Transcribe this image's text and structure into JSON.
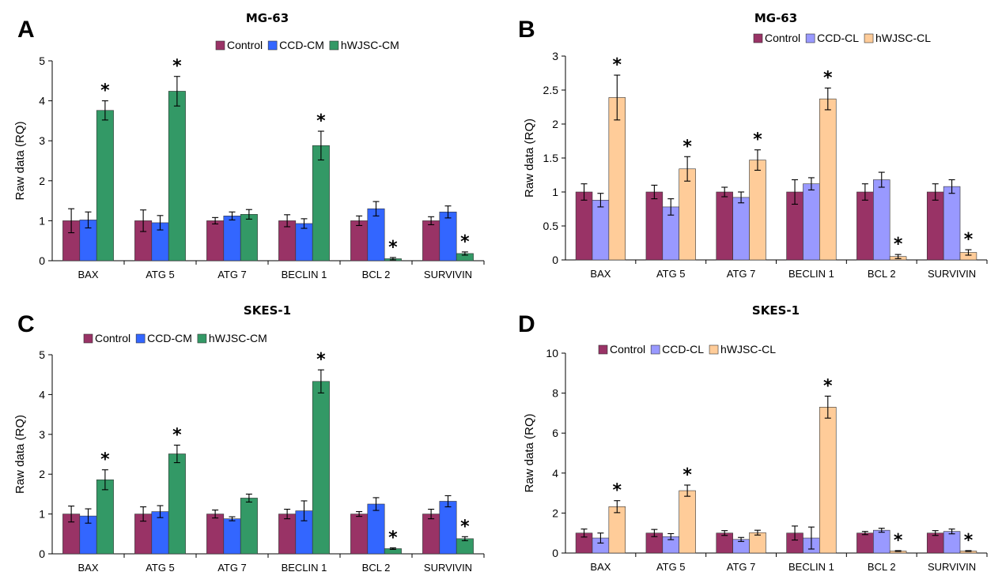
{
  "chart_data": [
    {
      "panel": "A",
      "type": "bar",
      "title": "MG-63",
      "ylabel": "Raw data (RQ)",
      "xlabel": "",
      "ylim": [
        0,
        5
      ],
      "yticks": [
        "0",
        "1",
        "2",
        "3",
        "4",
        "5"
      ],
      "categories": [
        "BAX",
        "ATG 5",
        "ATG 7",
        "BECLIN 1",
        "BCL 2",
        "SURVIVIN"
      ],
      "legend_position": "top",
      "series": [
        {
          "name": "Control",
          "color": "#993366",
          "values": [
            1.0,
            1.0,
            1.0,
            1.0,
            1.0,
            1.0
          ],
          "errors": [
            0.3,
            0.27,
            0.08,
            0.15,
            0.12,
            0.1
          ]
        },
        {
          "name": "CCD-CM",
          "color": "#3366ff",
          "values": [
            1.02,
            0.95,
            1.12,
            0.93,
            1.3,
            1.22
          ],
          "errors": [
            0.2,
            0.18,
            0.1,
            0.12,
            0.18,
            0.15
          ]
        },
        {
          "name": "hWJSC-CM",
          "color": "#339966",
          "values": [
            3.76,
            4.24,
            1.16,
            2.88,
            0.05,
            0.18
          ],
          "errors": [
            0.24,
            0.37,
            0.12,
            0.36,
            0.03,
            0.04
          ]
        }
      ],
      "significance": [
        "*",
        "*",
        "",
        "*",
        "*",
        "*"
      ]
    },
    {
      "panel": "B",
      "type": "bar",
      "title": "MG-63",
      "ylabel": "Raw data (RQ)",
      "xlabel": "",
      "ylim": [
        0,
        3
      ],
      "yticks": [
        "0",
        "0.5",
        "1",
        "1.5",
        "2",
        "2.5",
        "3"
      ],
      "categories": [
        "BAX",
        "ATG 5",
        "ATG 7",
        "BECLIN 1",
        "BCL 2",
        "SURVIVIN"
      ],
      "legend_position": "top-right",
      "series": [
        {
          "name": "Control",
          "color": "#993366",
          "values": [
            1.0,
            1.0,
            1.0,
            1.0,
            1.0,
            1.0
          ],
          "errors": [
            0.12,
            0.1,
            0.07,
            0.18,
            0.12,
            0.12
          ]
        },
        {
          "name": "CCD-CL",
          "color": "#9999ff",
          "values": [
            0.88,
            0.78,
            0.92,
            1.12,
            1.18,
            1.08
          ],
          "errors": [
            0.1,
            0.12,
            0.08,
            0.09,
            0.11,
            0.1
          ]
        },
        {
          "name": "hWJSC-CL",
          "color": "#ffcc99",
          "values": [
            2.39,
            1.34,
            1.47,
            2.37,
            0.05,
            0.11
          ],
          "errors": [
            0.33,
            0.18,
            0.15,
            0.16,
            0.03,
            0.04
          ]
        }
      ],
      "significance": [
        "*",
        "*",
        "*",
        "*",
        "*",
        "*"
      ]
    },
    {
      "panel": "C",
      "type": "bar",
      "title": "SKES-1",
      "ylabel": "Raw data (RQ)",
      "xlabel": "",
      "ylim": [
        0,
        5
      ],
      "yticks": [
        "0",
        "1",
        "2",
        "3",
        "4",
        "5"
      ],
      "categories": [
        "BAX",
        "ATG 5",
        "ATG 7",
        "BECLIN 1",
        "BCL 2",
        "SURVIVIN"
      ],
      "legend_position": "top-left",
      "series": [
        {
          "name": "Control",
          "color": "#993366",
          "values": [
            1.0,
            1.0,
            1.0,
            1.0,
            1.0,
            1.0
          ],
          "errors": [
            0.2,
            0.18,
            0.1,
            0.12,
            0.06,
            0.12
          ]
        },
        {
          "name": "CCD-CM",
          "color": "#3366ff",
          "values": [
            0.95,
            1.06,
            0.88,
            1.08,
            1.25,
            1.32
          ],
          "errors": [
            0.18,
            0.15,
            0.05,
            0.25,
            0.16,
            0.14
          ]
        },
        {
          "name": "hWJSC-CM",
          "color": "#339966",
          "values": [
            1.86,
            2.51,
            1.4,
            4.33,
            0.13,
            0.38
          ],
          "errors": [
            0.25,
            0.22,
            0.1,
            0.29,
            0.02,
            0.05
          ]
        }
      ],
      "significance": [
        "*",
        "*",
        "",
        "*",
        "*",
        "*"
      ]
    },
    {
      "panel": "D",
      "type": "bar",
      "title": "SKES-1",
      "ylabel": "Raw data (RQ)",
      "xlabel": "",
      "ylim": [
        0,
        10
      ],
      "yticks": [
        "0",
        "2",
        "4",
        "6",
        "8",
        "10"
      ],
      "categories": [
        "BAX",
        "ATG 5",
        "ATG 7",
        "BECLIN 1",
        "BCL 2",
        "SURVIVIN"
      ],
      "legend_position": "top-left",
      "series": [
        {
          "name": "Control",
          "color": "#993366",
          "values": [
            1.0,
            1.0,
            1.0,
            1.0,
            1.0,
            1.0
          ],
          "errors": [
            0.2,
            0.18,
            0.12,
            0.35,
            0.08,
            0.12
          ]
        },
        {
          "name": "CCD-CL",
          "color": "#9999ff",
          "values": [
            0.75,
            0.82,
            0.68,
            0.75,
            1.14,
            1.08
          ],
          "errors": [
            0.25,
            0.15,
            0.1,
            0.55,
            0.1,
            0.12
          ]
        },
        {
          "name": "hWJSC-CL",
          "color": "#ffcc99",
          "values": [
            2.32,
            3.12,
            1.02,
            7.3,
            0.1,
            0.1
          ],
          "errors": [
            0.3,
            0.28,
            0.12,
            0.55,
            0.02,
            0.02
          ]
        }
      ],
      "significance": [
        "*",
        "*",
        "",
        "*",
        "*",
        "*"
      ]
    }
  ]
}
